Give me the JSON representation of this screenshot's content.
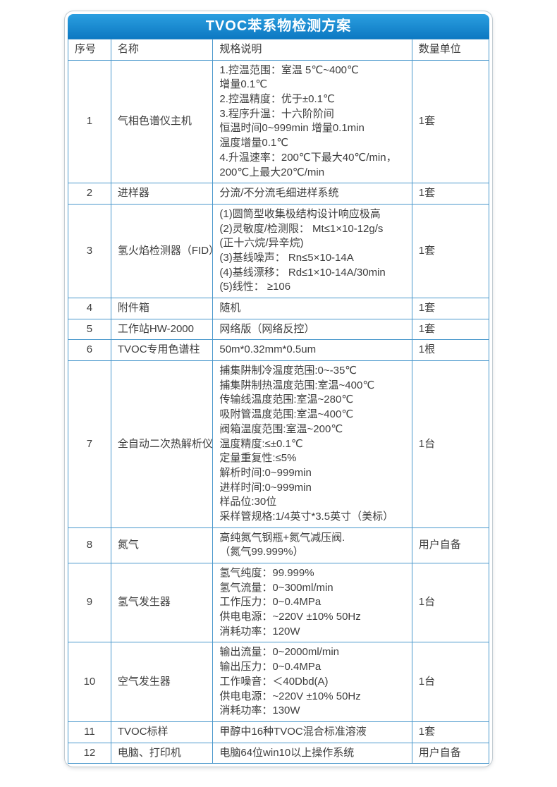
{
  "page": {
    "title": "TVOC苯系物检测方案"
  },
  "colors": {
    "header_blue_top": "#2b9fe0",
    "header_blue_bottom": "#0c78c2",
    "grid_blue": "#4a98cc",
    "text_color": "#3d3d3d"
  },
  "table": {
    "columns": [
      "序号",
      "名称",
      "规格说明",
      "数量单位"
    ],
    "rows": [
      {
        "no": "1",
        "name": "气相色谱仪主机",
        "spec": "1.控温范围：室温 5℃~400℃\n增量0.1℃\n2.控温精度：优于±0.1℃\n3.程序升温：十六阶阶间\n恒温时间0~999min 增量0.1min\n温度增量0.1℃\n4.升温速率：200℃下最大40℃/min，\n200℃上最大20℃/min",
        "qty": "1套"
      },
      {
        "no": "2",
        "name": "进样器",
        "spec": "分流/不分流毛细进样系统",
        "qty": "1套"
      },
      {
        "no": "3",
        "name": "氢火焰检测器（FID）",
        "spec": "(1)圆筒型收集极结构设计响应极高\n(2)灵敏度/检测限： Mt≤1×10-12g/s\n(正十六烷/异辛烷)\n(3)基线噪声： Rn≤5×10-14A\n(4)基线漂移： Rd≤1×10-14A/30min\n(5)线性： ≥106",
        "qty": "1套"
      },
      {
        "no": "4",
        "name": "附件箱",
        "spec": "随机",
        "qty": "1套"
      },
      {
        "no": "5",
        "name": "工作站HW-2000",
        "spec": "网络版（网络反控）",
        "qty": "1套"
      },
      {
        "no": "6",
        "name": "TVOC专用色谱柱",
        "spec": "50m*0.32mm*0.5um",
        "qty": "1根"
      },
      {
        "no": "7",
        "name": "全自动二次热解析仪",
        "spec": "捕集阱制冷温度范围:0~-35℃\n捕集阱制热温度范围:室温~400℃\n传输线温度范围:室温~280℃\n吸附管温度范围:室温~400℃\n阀箱温度范围:室温~200℃\n温度精度:≤±0.1℃\n定量重复性:≤5%\n解析时间:0~999min\n进样时间:0~999min\n样品位:30位\n采样管规格:1/4英寸*3.5英寸（美标）",
        "qty": "1台"
      },
      {
        "no": "8",
        "name": "氮气",
        "spec": "高纯氮气钢瓶+氮气减压阀.\n（氮气99.999%）",
        "qty": "用户自备"
      },
      {
        "no": "9",
        "name": "氢气发生器",
        "spec": "氢气纯度：99.999%\n氢气流量：0~300ml/min\n工作压力：0~0.4MPa\n供电电源：~220V ±10% 50Hz\n消耗功率：120W",
        "qty": "1台"
      },
      {
        "no": "10",
        "name": "空气发生器",
        "spec": "输出流量：0~2000ml/min\n输出压力：0~0.4MPa\n工作噪音：＜40Dbd(A)\n供电电源：~220V ±10% 50Hz\n消耗功率：130W",
        "qty": "1台"
      },
      {
        "no": "11",
        "name": "TVOC标样",
        "spec": "甲醇中16种TVOC混合标准溶液",
        "qty": "1套"
      },
      {
        "no": "12",
        "name": "电脑、打印机",
        "spec": "电脑64位win10以上操作系统",
        "qty": "用户自备"
      }
    ]
  }
}
